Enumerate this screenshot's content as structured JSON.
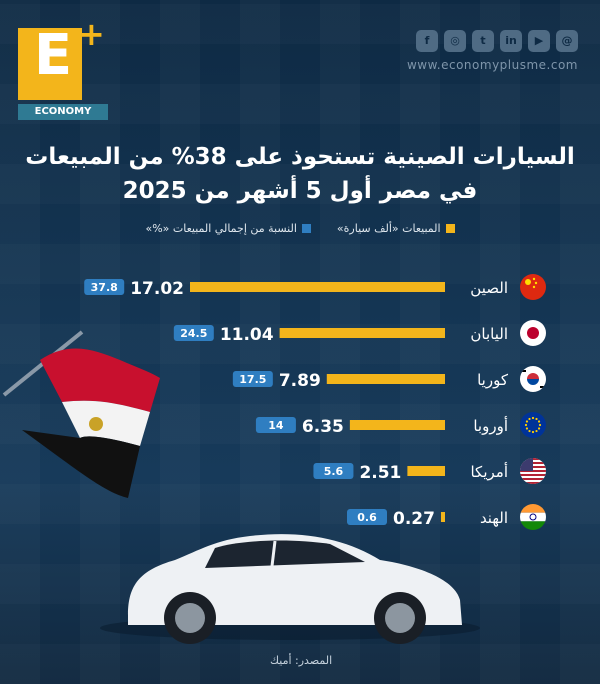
{
  "header": {
    "logo_letter": "E",
    "logo_plus": "+",
    "logo_word": "ECONOMY",
    "social_icons": [
      "facebook-icon",
      "instagram-icon",
      "twitter-icon",
      "linkedin-icon",
      "youtube-icon",
      "threads-icon"
    ],
    "website": "www.economyplusme.com"
  },
  "colors": {
    "sales": "#f3b51b",
    "share": "#2f7ec1",
    "background": "#143553"
  },
  "chart_data": {
    "type": "bar",
    "title_line1": "السيارات الصينية تستحوذ على 38% من المبيعات",
    "title_line2": "في مصر أول 5 أشهر من 2025",
    "legend": {
      "sales": "المبيعات «ألف سيارة»",
      "share": "النسبة من إجمالي المبيعات «%»"
    },
    "categories": [
      "الصين",
      "اليابان",
      "كوريا",
      "أوروبا",
      "أمريكا",
      "الهند"
    ],
    "flags": [
      "china-flag-icon",
      "japan-flag-icon",
      "korea-flag-icon",
      "eu-flag-icon",
      "usa-flag-icon",
      "india-flag-icon"
    ],
    "series": [
      {
        "name": "المبيعات «ألف سيارة»",
        "values": [
          17.02,
          11.04,
          7.89,
          6.35,
          2.51,
          0.27
        ]
      },
      {
        "name": "النسبة من إجمالي المبيعات «%»",
        "values": [
          37.8,
          24.5,
          17.5,
          14,
          5.6,
          0.6
        ]
      }
    ],
    "value_labels": [
      "17.02",
      "11.04",
      "7.89",
      "6.35",
      "2.51",
      "0.27"
    ],
    "share_labels": [
      "37.8",
      "24.5",
      "17.5",
      "14",
      "5.6",
      "0.6"
    ]
  },
  "footer": {
    "source": "المصدر: أميك"
  }
}
